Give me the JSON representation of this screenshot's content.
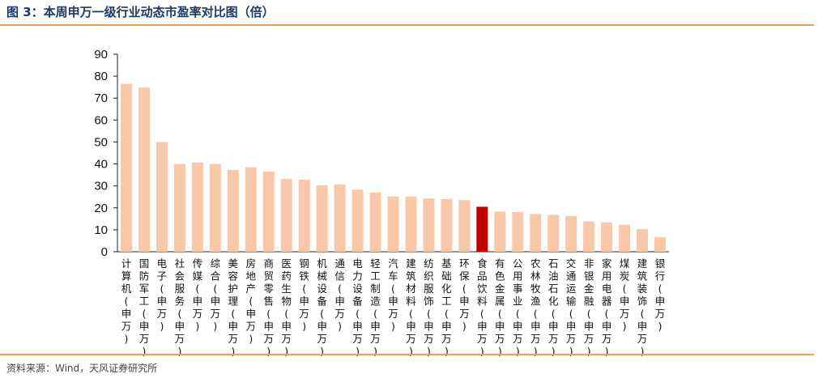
{
  "header": {
    "title": "图 3：本周申万一级行业动态市盈率对比图（倍）"
  },
  "footer": {
    "source": "资料来源：Wind，天风证券研究所"
  },
  "colors": {
    "bar": "#f8c8a8",
    "highlight": "#c00000",
    "rule": "#f0a050"
  },
  "chart_data": {
    "type": "bar",
    "title": "",
    "xlabel": "",
    "ylabel": "",
    "ylim": [
      0,
      90
    ],
    "yticks": [
      0,
      10,
      20,
      30,
      40,
      50,
      60,
      70,
      80,
      90
    ],
    "grid": false,
    "highlight_category": "食品饮料(申万)",
    "categories": [
      "计算机(申万)",
      "国防军工(申万)",
      "电子(申万)",
      "社会服务(申万)",
      "传媒(申万)",
      "综合(申万)",
      "美容护理(申万)",
      "房地产(申万)",
      "商贸零售(申万)",
      "医药生物(申万)",
      "钢铁(申万)",
      "机械设备(申万)",
      "通信(申万)",
      "电力设备(申万)",
      "轻工制造(申万)",
      "汽车(申万)",
      "建筑材料(申万)",
      "纺织服饰(申万)",
      "基础化工(申万)",
      "环保(申万)",
      "食品饮料(申万)",
      "有色金属(申万)",
      "公用事业(申万)",
      "农林牧渔(申万)",
      "石油石化(申万)",
      "交通运输(申万)",
      "非银金融(申万)",
      "家用电器(申万)",
      "煤炭(申万)",
      "建筑装饰(申万)",
      "银行(申万)"
    ],
    "values": [
      76.5,
      74.8,
      50,
      40,
      40.7,
      40,
      37.3,
      38.5,
      36.5,
      33.2,
      32.8,
      30.3,
      30.7,
      28.3,
      27.0,
      25.2,
      25.2,
      24.3,
      24.0,
      23.5,
      20.5,
      18.3,
      18.1,
      17.2,
      16.8,
      16.3,
      13.8,
      13.4,
      12.3,
      10.3,
      6.7
    ]
  }
}
